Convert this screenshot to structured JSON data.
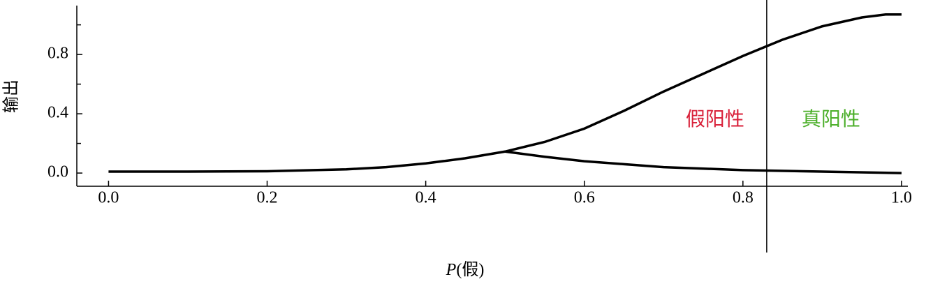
{
  "chart_data": {
    "type": "line",
    "xlabel_var": "P",
    "xlabel_rest": "(假)",
    "ylabel": "输出",
    "series": [
      {
        "color": "#000000",
        "x": [
          0,
          0.1,
          0.2,
          0.3,
          0.35,
          0.4,
          0.45,
          0.5,
          0.55,
          0.6,
          0.65,
          0.7,
          0.75,
          0.8,
          0.85,
          0.9,
          0.95,
          0.98,
          1.0
        ],
        "values": [
          0.01,
          0.01,
          0.012,
          0.025,
          0.04,
          0.065,
          0.1,
          0.145,
          0.21,
          0.3,
          0.42,
          0.55,
          0.67,
          0.79,
          0.9,
          0.99,
          1.05,
          1.07,
          1.07
        ]
      },
      {
        "color": "#000000",
        "x": [
          0.5,
          0.55,
          0.6,
          0.65,
          0.7,
          0.8,
          0.9,
          1.0
        ],
        "values": [
          0.145,
          0.11,
          0.08,
          0.06,
          0.04,
          0.02,
          0.01,
          0.0
        ]
      }
    ],
    "threshold_x": 0.83,
    "annotations": [
      {
        "text": "假阳性",
        "color": "#d9213a"
      },
      {
        "text": "真阳性",
        "color": "#4caf2a"
      }
    ],
    "xlim": [
      -0.04,
      1.008
    ],
    "ylim": [
      -0.089,
      1.13
    ],
    "xticks": [
      {
        "value": 0,
        "label": "0.0"
      },
      0.2,
      0.4,
      0.6,
      0.8,
      {
        "value": 1,
        "label": "1.0"
      }
    ],
    "yticks": [
      {
        "value": 0,
        "label": "0.0"
      },
      0.4,
      0.8
    ],
    "y_minor_ticks": [
      0.2,
      0.6,
      1.0
    ]
  }
}
